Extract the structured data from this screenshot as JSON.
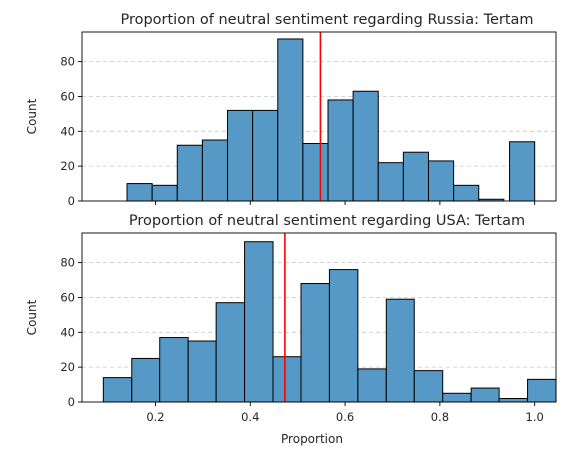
{
  "colors": {
    "bar_fill": "#5799c6",
    "bar_stroke": "#000000",
    "mean_line": "#ff0000",
    "grid": "#c8c8c8",
    "axis": "#000000"
  },
  "chart_data": [
    {
      "type": "bar",
      "title": "Proportion of neutral sentiment regarding Russia: Tertam",
      "xlabel": "",
      "ylabel": "Count",
      "xlim": [
        0.045,
        1.045
      ],
      "ylim": [
        0,
        97
      ],
      "x_ticks": [
        0.2,
        0.4,
        0.6,
        0.8,
        1.0
      ],
      "x_tick_labels": [
        "",
        "",
        "",
        "",
        ""
      ],
      "y_ticks": [
        0,
        20,
        40,
        60,
        80
      ],
      "y_tick_labels": [
        "0",
        "20",
        "40",
        "60",
        "80"
      ],
      "grid": "y-dashed",
      "mean_line_x": 0.548,
      "bins": [
        {
          "start": 0.14,
          "end": 0.193,
          "count": 10
        },
        {
          "start": 0.193,
          "end": 0.246,
          "count": 9
        },
        {
          "start": 0.246,
          "end": 0.299,
          "count": 32
        },
        {
          "start": 0.299,
          "end": 0.352,
          "count": 35
        },
        {
          "start": 0.352,
          "end": 0.405,
          "count": 52
        },
        {
          "start": 0.405,
          "end": 0.458,
          "count": 52
        },
        {
          "start": 0.458,
          "end": 0.511,
          "count": 93
        },
        {
          "start": 0.511,
          "end": 0.564,
          "count": 33
        },
        {
          "start": 0.564,
          "end": 0.617,
          "count": 58
        },
        {
          "start": 0.617,
          "end": 0.67,
          "count": 63
        },
        {
          "start": 0.67,
          "end": 0.723,
          "count": 22
        },
        {
          "start": 0.723,
          "end": 0.776,
          "count": 28
        },
        {
          "start": 0.776,
          "end": 0.829,
          "count": 23
        },
        {
          "start": 0.829,
          "end": 0.882,
          "count": 9
        },
        {
          "start": 0.882,
          "end": 0.935,
          "count": 1
        },
        {
          "start": 0.947,
          "end": 1.0,
          "count": 34
        }
      ]
    },
    {
      "type": "bar",
      "title": "Proportion of neutral sentiment regarding USA: Tertam",
      "xlabel": "Proportion",
      "ylabel": "Count",
      "xlim": [
        0.045,
        1.045
      ],
      "ylim": [
        0,
        97
      ],
      "x_ticks": [
        0.2,
        0.4,
        0.6,
        0.8,
        1.0
      ],
      "x_tick_labels": [
        "0.2",
        "0.4",
        "0.6",
        "0.8",
        "1.0"
      ],
      "y_ticks": [
        0,
        20,
        40,
        60,
        80
      ],
      "y_tick_labels": [
        "0",
        "20",
        "40",
        "60",
        "80"
      ],
      "grid": "y-dashed",
      "mean_line_x": 0.473,
      "bins": [
        {
          "start": 0.09,
          "end": 0.15,
          "count": 14
        },
        {
          "start": 0.15,
          "end": 0.209,
          "count": 25
        },
        {
          "start": 0.209,
          "end": 0.269,
          "count": 37
        },
        {
          "start": 0.269,
          "end": 0.328,
          "count": 35
        },
        {
          "start": 0.328,
          "end": 0.388,
          "count": 57
        },
        {
          "start": 0.388,
          "end": 0.448,
          "count": 92
        },
        {
          "start": 0.448,
          "end": 0.507,
          "count": 26
        },
        {
          "start": 0.507,
          "end": 0.567,
          "count": 68
        },
        {
          "start": 0.567,
          "end": 0.627,
          "count": 76
        },
        {
          "start": 0.627,
          "end": 0.687,
          "count": 19
        },
        {
          "start": 0.687,
          "end": 0.746,
          "count": 59
        },
        {
          "start": 0.746,
          "end": 0.806,
          "count": 18
        },
        {
          "start": 0.806,
          "end": 0.866,
          "count": 5
        },
        {
          "start": 0.866,
          "end": 0.925,
          "count": 8
        },
        {
          "start": 0.925,
          "end": 0.985,
          "count": 2
        },
        {
          "start": 0.985,
          "end": 1.045,
          "count": 13
        }
      ]
    }
  ]
}
